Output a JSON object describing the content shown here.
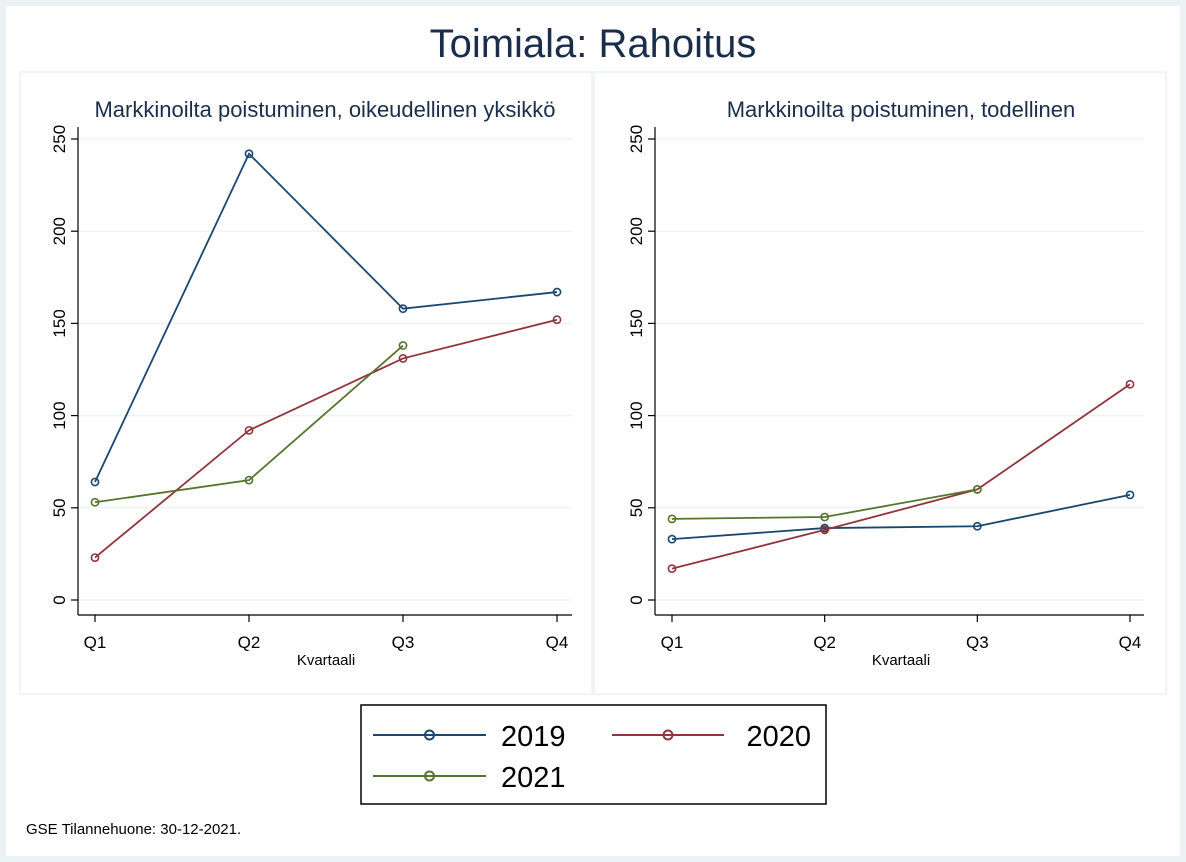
{
  "title": "Toimiala: Rahoitus",
  "note": "GSE Tilannehuone: 30-12-2021.",
  "colors": {
    "2019": "#1a476f",
    "2020": "#90353b",
    "2021": "#55752f",
    "title": "#1a2e4c",
    "grid": "#eaf2f3"
  },
  "legend": [
    "2019",
    "2020",
    "2021"
  ],
  "chart_data": [
    {
      "type": "line",
      "title": "Markkinoilta poistuminen, oikeudellinen yksikkö",
      "xlabel": "Kvartaali",
      "ylabel": "",
      "categories": [
        "Q1",
        "Q2",
        "Q3",
        "Q4"
      ],
      "yticks": [
        0,
        50,
        100,
        150,
        200,
        250
      ],
      "ylim": [
        0,
        250
      ],
      "grid": true,
      "legend_position": "bottom",
      "series": [
        {
          "name": "2019",
          "values": [
            64,
            242,
            158,
            167
          ]
        },
        {
          "name": "2020",
          "values": [
            23,
            92,
            131,
            152
          ]
        },
        {
          "name": "2021",
          "values": [
            53,
            65,
            138,
            null
          ]
        }
      ]
    },
    {
      "type": "line",
      "title": "Markkinoilta poistuminen, todellinen",
      "xlabel": "Kvartaali",
      "ylabel": "",
      "categories": [
        "Q1",
        "Q2",
        "Q3",
        "Q4"
      ],
      "yticks": [
        0,
        50,
        100,
        150,
        200,
        250
      ],
      "ylim": [
        0,
        250
      ],
      "grid": true,
      "legend_position": "bottom",
      "series": [
        {
          "name": "2019",
          "values": [
            33,
            39,
            40,
            57
          ]
        },
        {
          "name": "2020",
          "values": [
            17,
            38,
            60,
            117
          ]
        },
        {
          "name": "2021",
          "values": [
            44,
            45,
            60,
            null
          ]
        }
      ]
    }
  ]
}
